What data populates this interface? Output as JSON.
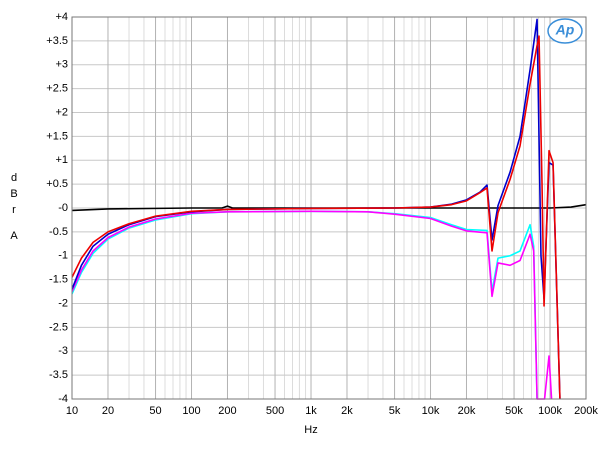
{
  "chart_data": {
    "type": "line",
    "xlabel": "Hz",
    "y_label_lines": [
      "d",
      "B",
      "r",
      "A"
    ],
    "logo": "Ap",
    "xscale": "log",
    "grid": true,
    "xlim": [
      10,
      200000
    ],
    "ylim": [
      -4,
      4
    ],
    "xticks": [
      10,
      20,
      50,
      100,
      200,
      500,
      {
        "value": 1000,
        "label": "1k"
      },
      {
        "value": 2000,
        "label": "2k"
      },
      {
        "value": 5000,
        "label": "5k"
      },
      {
        "value": 10000,
        "label": "10k"
      },
      {
        "value": 20000,
        "label": "20k"
      },
      {
        "value": 50000,
        "label": "50k"
      },
      {
        "value": 100000,
        "label": "100k"
      },
      {
        "value": 200000,
        "label": "200k"
      }
    ],
    "yticks": [
      {
        "value": 4,
        "label": "+4"
      },
      {
        "value": 3.5,
        "label": "+3.5"
      },
      {
        "value": 3,
        "label": "+3"
      },
      {
        "value": 2.5,
        "label": "+2.5"
      },
      {
        "value": 2,
        "label": "+2"
      },
      {
        "value": 1.5,
        "label": "+1.5"
      },
      {
        "value": 1,
        "label": "+1"
      },
      {
        "value": 0.5,
        "label": "+0.5"
      },
      {
        "value": 0,
        "label": "-0"
      },
      -0.5,
      -1,
      -1.5,
      -2,
      -2.5,
      -3,
      -3.5,
      -4
    ],
    "series": [
      {
        "color": "#000000",
        "x": [
          10,
          20,
          100,
          180,
          200,
          220,
          1000,
          10000,
          100000,
          150000,
          200000
        ],
        "values": [
          -0.05,
          -0.02,
          0,
          0,
          0.04,
          0,
          0,
          0,
          0,
          0.02,
          0.07
        ]
      },
      {
        "color": "#00ffff",
        "x": [
          10,
          12,
          15,
          20,
          30,
          50,
          100,
          200,
          1000,
          3000,
          5000,
          10000,
          15000,
          20000,
          29700,
          32700,
          36700,
          46300,
          56100,
          68100,
          73000,
          77900
        ],
        "values": [
          -1.8,
          -1.35,
          -0.95,
          -0.65,
          -0.42,
          -0.25,
          -0.12,
          -0.08,
          -0.07,
          -0.08,
          -0.12,
          -0.2,
          -0.35,
          -0.45,
          -0.47,
          -1.75,
          -1.05,
          -1.0,
          -0.9,
          -0.35,
          -0.8,
          -4
        ]
      },
      {
        "color": "#ff00ff",
        "x": [
          10,
          12,
          15,
          20,
          30,
          50,
          100,
          200,
          1000,
          3000,
          5000,
          10000,
          15000,
          20000,
          29700,
          32700,
          36700,
          46300,
          56100,
          68100,
          73000,
          77900,
          90000,
          98100,
          103000
        ],
        "values": [
          -1.75,
          -1.3,
          -0.9,
          -0.62,
          -0.4,
          -0.23,
          -0.11,
          -0.08,
          -0.07,
          -0.08,
          -0.13,
          -0.22,
          -0.38,
          -0.48,
          -0.52,
          -1.85,
          -1.15,
          -1.2,
          -1.1,
          -0.55,
          -0.9,
          -4,
          -4,
          -3.1,
          -4
        ]
      },
      {
        "color": "#0000cc",
        "x": [
          10,
          12,
          15,
          20,
          30,
          50,
          100,
          200,
          1000,
          5000,
          10000,
          15000,
          20000,
          25900,
          29700,
          32700,
          36700,
          46300,
          56100,
          68100,
          77900,
          84000,
          89100,
          98100,
          106000,
          121000
        ],
        "values": [
          -1.7,
          -1.2,
          -0.8,
          -0.55,
          -0.35,
          -0.18,
          -0.08,
          -0.03,
          -0.01,
          0,
          0.02,
          0.08,
          0.17,
          0.33,
          0.48,
          -0.67,
          0.05,
          0.75,
          1.5,
          2.9,
          3.95,
          -1.0,
          -1.9,
          0.95,
          0.9,
          -4
        ]
      },
      {
        "color": "#ee0000",
        "x": [
          10,
          12,
          15,
          20,
          30,
          50,
          100,
          200,
          1000,
          5000,
          10000,
          15000,
          20000,
          25900,
          29700,
          32700,
          36700,
          46300,
          56100,
          68100,
          77900,
          80900,
          85700,
          89100,
          98100,
          106000,
          121000
        ],
        "values": [
          -1.45,
          -1.05,
          -0.72,
          -0.5,
          -0.33,
          -0.17,
          -0.07,
          -0.03,
          -0.01,
          0,
          0.02,
          0.07,
          0.15,
          0.32,
          0.42,
          -0.9,
          -0.1,
          0.6,
          1.3,
          2.6,
          3.4,
          3.6,
          0.5,
          -2.05,
          1.2,
          0.95,
          -4
        ]
      }
    ]
  }
}
